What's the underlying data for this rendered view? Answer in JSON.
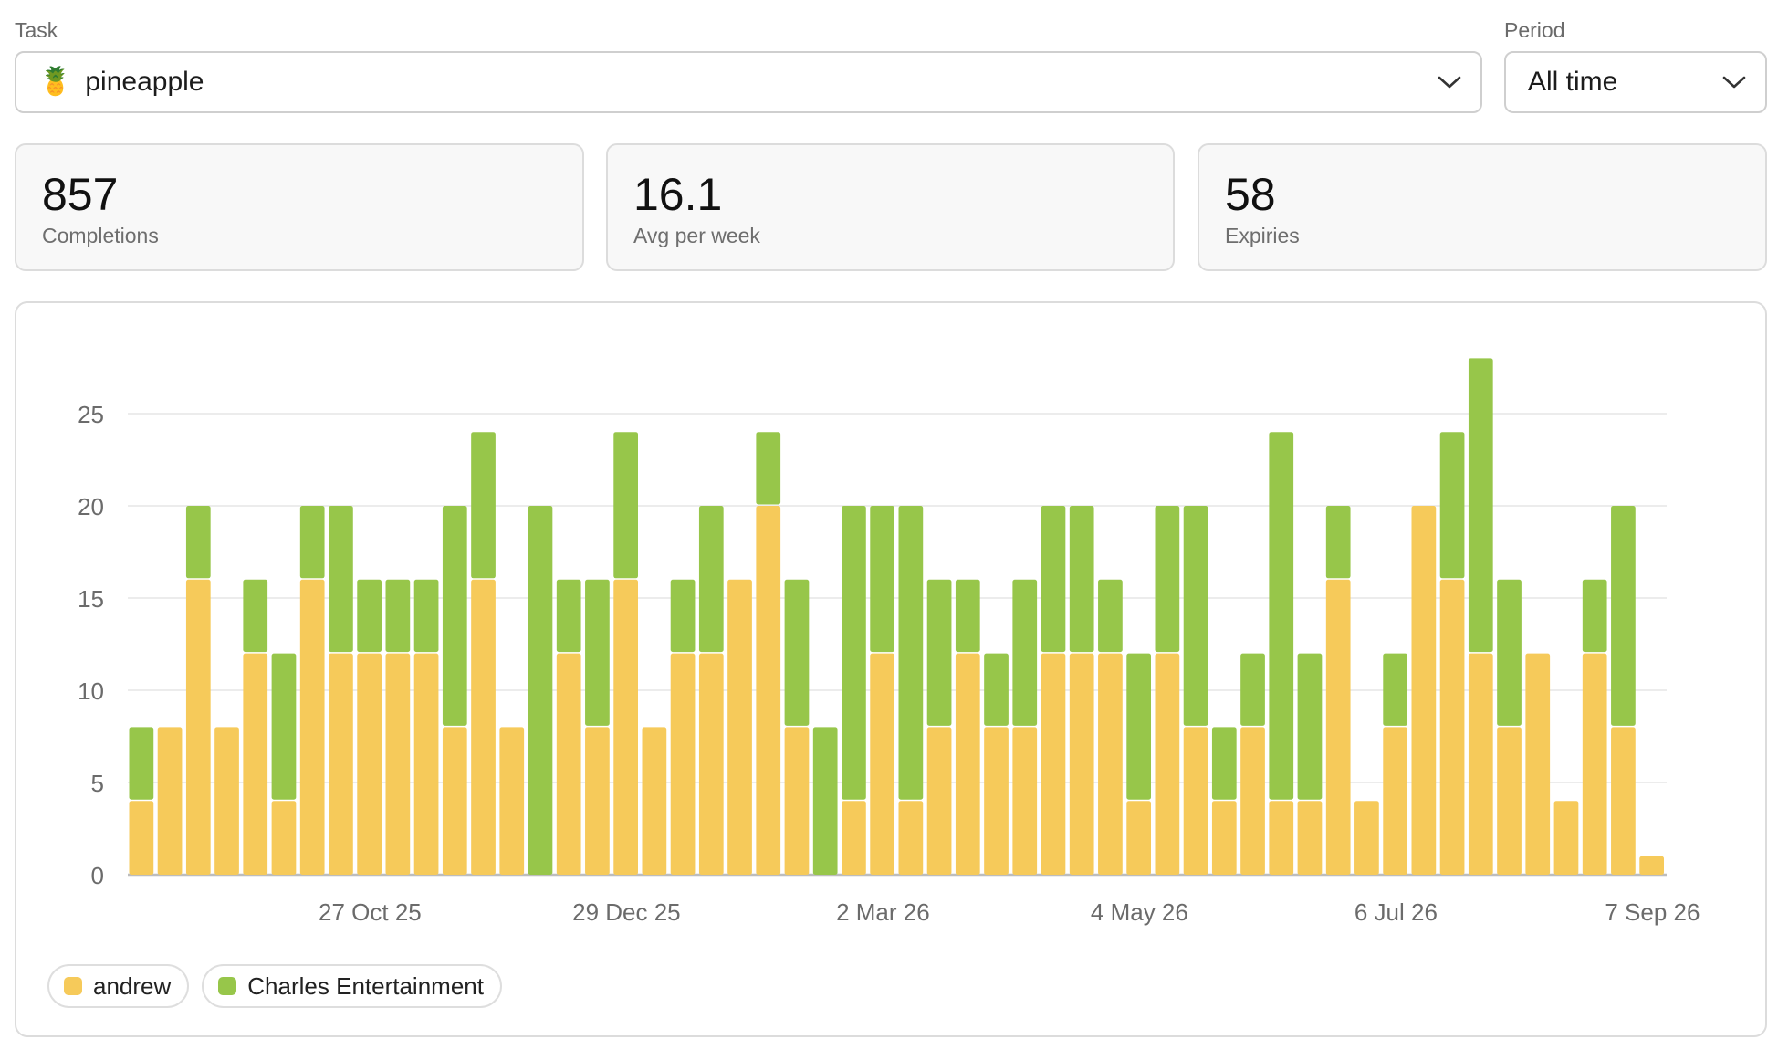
{
  "filters": {
    "task_label": "Task",
    "task_emoji": "🍍",
    "task_value": "pineapple",
    "period_label": "Period",
    "period_value": "All time"
  },
  "stats": [
    {
      "value": "857",
      "label": "Completions"
    },
    {
      "value": "16.1",
      "label": "Avg per week"
    },
    {
      "value": "58",
      "label": "Expiries"
    }
  ],
  "legend": [
    {
      "name": "andrew",
      "color": "#f6ca5a"
    },
    {
      "name": "Charles Entertainment",
      "color": "#97c64a"
    }
  ],
  "chart_data": {
    "type": "bar",
    "stacked": true,
    "title": "",
    "xlabel": "",
    "ylabel": "",
    "ylim": [
      0,
      28
    ],
    "yticks": [
      0,
      5,
      10,
      15,
      20,
      25
    ],
    "grid": true,
    "legend_position": "bottom-left",
    "x_tick_labels": [
      {
        "label": "27 Oct 25",
        "index": 8
      },
      {
        "label": "29 Dec 25",
        "index": 17
      },
      {
        "label": "2 Mar 26",
        "index": 26
      },
      {
        "label": "4 May 26",
        "index": 35
      },
      {
        "label": "6 Jul 26",
        "index": 44
      },
      {
        "label": "7 Sep 26",
        "index": 53
      }
    ],
    "series": [
      {
        "name": "andrew",
        "color": "#f6ca5a",
        "values": [
          4,
          8,
          16,
          8,
          12,
          4,
          16,
          12,
          12,
          12,
          12,
          8,
          16,
          8,
          0,
          12,
          8,
          16,
          8,
          12,
          12,
          16,
          20,
          8,
          0,
          4,
          12,
          4,
          8,
          12,
          8,
          8,
          12,
          12,
          12,
          4,
          12,
          8,
          4,
          8,
          4,
          4,
          16,
          4,
          8,
          20,
          16,
          12,
          8,
          12,
          4,
          12,
          8,
          1
        ]
      },
      {
        "name": "Charles Entertainment",
        "color": "#97c64a",
        "values": [
          4,
          0,
          4,
          0,
          4,
          8,
          4,
          8,
          4,
          4,
          4,
          12,
          8,
          0,
          20,
          4,
          8,
          8,
          0,
          4,
          8,
          0,
          4,
          8,
          8,
          16,
          8,
          16,
          8,
          4,
          4,
          8,
          8,
          8,
          4,
          8,
          8,
          12,
          4,
          4,
          20,
          8,
          4,
          0,
          4,
          0,
          8,
          16,
          8,
          0,
          0,
          4,
          12,
          0
        ]
      }
    ]
  }
}
